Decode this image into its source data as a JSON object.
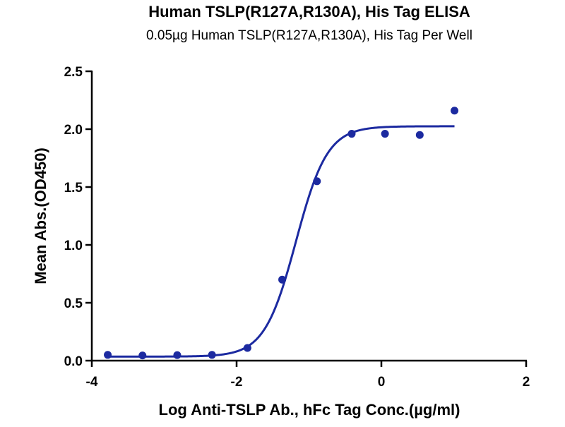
{
  "chart_data": {
    "type": "scatter",
    "title": "Human TSLP(R127A,R130A), His Tag ELISA",
    "subtitle": "0.05µg Human TSLP(R127A,R130A), His Tag Per Well",
    "xlabel": "Log Anti-TSLP Ab., hFc Tag Conc.(µg/ml)",
    "ylabel": "Mean Abs.(OD450)",
    "xlim": [
      -4,
      2
    ],
    "ylim": [
      0,
      2.5
    ],
    "x_ticks": [
      -4,
      -2,
      0,
      2
    ],
    "y_ticks": [
      0.0,
      0.5,
      1.0,
      1.5,
      2.0,
      2.5
    ],
    "x_tick_labels": [
      "-4",
      "-2",
      "0",
      "2"
    ],
    "y_tick_labels": [
      "0.0",
      "0.5",
      "1.0",
      "1.5",
      "2.0",
      "2.5"
    ],
    "grid": false,
    "legend": false,
    "color": "#1c2aa0",
    "points": [
      {
        "x": -3.78,
        "y": 0.05
      },
      {
        "x": -3.3,
        "y": 0.045
      },
      {
        "x": -2.82,
        "y": 0.048
      },
      {
        "x": -2.34,
        "y": 0.05
      },
      {
        "x": -1.85,
        "y": 0.11
      },
      {
        "x": -1.37,
        "y": 0.7
      },
      {
        "x": -0.89,
        "y": 1.55
      },
      {
        "x": -0.41,
        "y": 1.96
      },
      {
        "x": 0.05,
        "y": 1.96
      },
      {
        "x": 0.53,
        "y": 1.95
      },
      {
        "x": 1.01,
        "y": 2.16
      }
    ],
    "fit": {
      "model": "4PL",
      "bottom": 0.035,
      "top": 2.025,
      "log_ec50": -1.18,
      "hill_slope": 2.0,
      "x_range": [
        -3.78,
        1.01
      ]
    }
  }
}
